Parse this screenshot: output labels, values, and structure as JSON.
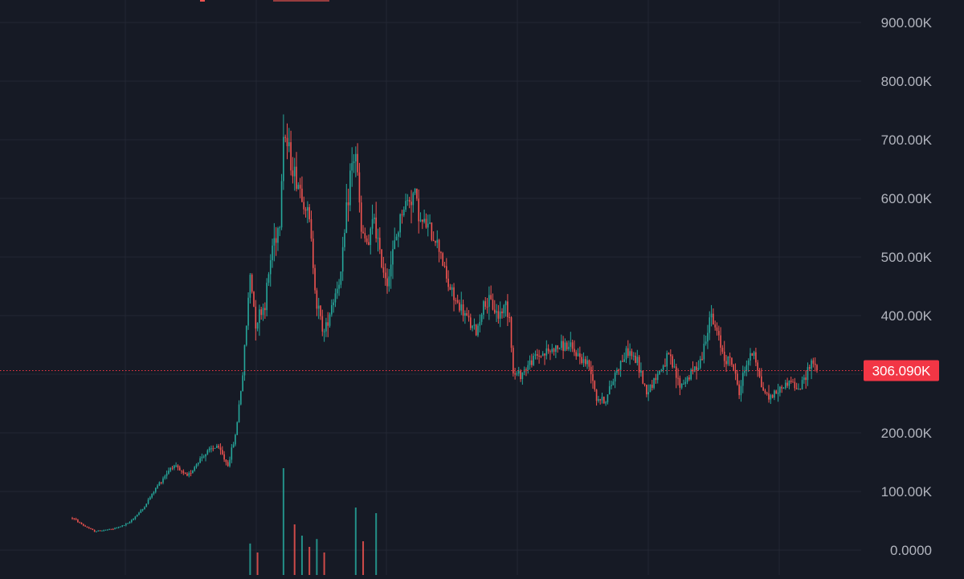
{
  "chart_data": {
    "type": "candlestick",
    "y_axis": {
      "ticks": [
        0,
        100000,
        200000,
        300000,
        400000,
        500000,
        600000,
        700000,
        800000,
        900000
      ],
      "tick_labels": [
        "0.0000",
        "100.00K",
        "200.00K",
        "300.00K",
        "400.00K",
        "500.00K",
        "600.00K",
        "700.00K",
        "800.00K",
        "900.00K"
      ],
      "range": [
        0,
        930000
      ]
    },
    "grid": true,
    "last_price": {
      "value": 306090,
      "label": "306.090K"
    },
    "colors": {
      "background": "#161a25",
      "up": "#26a69a",
      "down": "#ef5350",
      "grid": "#232734",
      "axis_text": "#b2b5be",
      "price_line": "#f23645",
      "price_label_bg": "#f23645",
      "price_label_text": "#ffffff"
    },
    "anchors": [
      [
        0,
        55000
      ],
      [
        6,
        42000
      ],
      [
        12,
        32000
      ],
      [
        22,
        36000
      ],
      [
        30,
        45000
      ],
      [
        38,
        70000
      ],
      [
        46,
        110000
      ],
      [
        54,
        145000
      ],
      [
        62,
        125000
      ],
      [
        70,
        160000
      ],
      [
        78,
        178000
      ],
      [
        84,
        145000
      ],
      [
        88,
        195000
      ],
      [
        92,
        300000
      ],
      [
        96,
        470000
      ],
      [
        99,
        390000
      ],
      [
        104,
        420000
      ],
      [
        108,
        520000
      ],
      [
        112,
        560000
      ],
      [
        114,
        720000
      ],
      [
        116,
        690000
      ],
      [
        120,
        640000
      ],
      [
        124,
        610000
      ],
      [
        128,
        560000
      ],
      [
        132,
        420000
      ],
      [
        136,
        370000
      ],
      [
        140,
        420000
      ],
      [
        145,
        470000
      ],
      [
        150,
        640000
      ],
      [
        153,
        680000
      ],
      [
        156,
        540000
      ],
      [
        160,
        520000
      ],
      [
        163,
        570000
      ],
      [
        166,
        500000
      ],
      [
        170,
        460000
      ],
      [
        174,
        520000
      ],
      [
        178,
        580000
      ],
      [
        182,
        600000
      ],
      [
        185,
        610000
      ],
      [
        188,
        560000
      ],
      [
        192,
        550000
      ],
      [
        196,
        530000
      ],
      [
        199,
        510000
      ],
      [
        202,
        460000
      ],
      [
        206,
        430000
      ],
      [
        210,
        410000
      ],
      [
        214,
        390000
      ],
      [
        218,
        370000
      ],
      [
        222,
        420000
      ],
      [
        226,
        420000
      ],
      [
        230,
        400000
      ],
      [
        234,
        420000
      ],
      [
        236,
        400000
      ],
      [
        238,
        300000
      ],
      [
        242,
        300000
      ],
      [
        250,
        330000
      ],
      [
        258,
        340000
      ],
      [
        266,
        350000
      ],
      [
        274,
        330000
      ],
      [
        280,
        310000
      ],
      [
        283,
        260000
      ],
      [
        288,
        255000
      ],
      [
        294,
        310000
      ],
      [
        300,
        340000
      ],
      [
        305,
        320000
      ],
      [
        310,
        270000
      ],
      [
        316,
        300000
      ],
      [
        322,
        330000
      ],
      [
        328,
        280000
      ],
      [
        334,
        300000
      ],
      [
        340,
        330000
      ],
      [
        344,
        400000
      ],
      [
        348,
        370000
      ],
      [
        352,
        330000
      ],
      [
        356,
        320000
      ],
      [
        360,
        270000
      ],
      [
        364,
        320000
      ],
      [
        368,
        340000
      ],
      [
        372,
        280000
      ],
      [
        376,
        260000
      ],
      [
        380,
        270000
      ],
      [
        384,
        280000
      ],
      [
        388,
        290000
      ],
      [
        392,
        270000
      ],
      [
        396,
        300000
      ],
      [
        399,
        325000
      ],
      [
        402,
        306090
      ]
    ],
    "volume_spikes": [
      [
        96,
        0.28
      ],
      [
        100,
        0.2
      ],
      [
        114,
        0.95
      ],
      [
        120,
        0.45
      ],
      [
        124,
        0.35
      ],
      [
        128,
        0.25
      ],
      [
        132,
        0.32
      ],
      [
        136,
        0.2
      ],
      [
        153,
        0.6
      ],
      [
        157,
        0.3
      ],
      [
        164,
        0.55
      ]
    ]
  }
}
